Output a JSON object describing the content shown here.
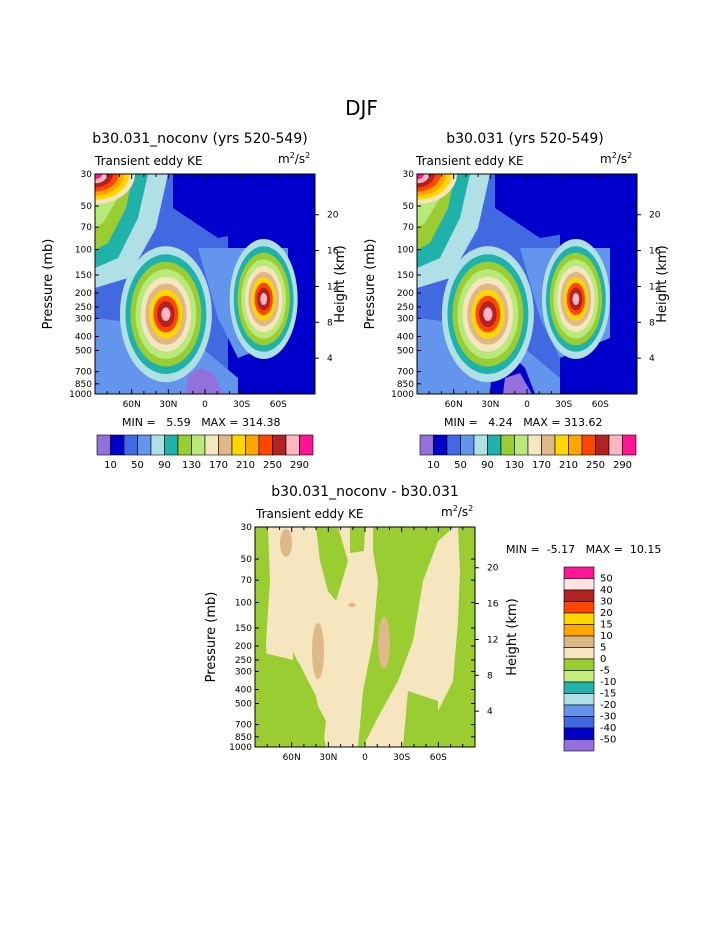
{
  "figure": {
    "title": "DJF"
  },
  "colors": {
    "kePalette": [
      "#9370db",
      "#0000cd",
      "#4169e1",
      "#6495ed",
      "#b0e0e6",
      "#20b2aa",
      "#9acd32",
      "#b9e87b",
      "#f5e6c0",
      "#deb887",
      "#ffd700",
      "#ffa500",
      "#ff4500",
      "#b22222",
      "#ffb6c1",
      "#ff1493"
    ],
    "diffPalette": [
      "#9370db",
      "#0000cd",
      "#4169e1",
      "#6495ed",
      "#b0e0e6",
      "#20b2aa",
      "#c6ee7c",
      "#9acd32",
      "#f5e6c0",
      "#deb887",
      "#ffa500",
      "#ffd700",
      "#ff4500",
      "#b22222",
      "#ffe4e1",
      "#ff1493"
    ]
  },
  "chart_data": [
    {
      "type": "heatmap",
      "title": "b30.031_noconv (yrs 520-549)",
      "subtitle": "Transient eddy KE",
      "units": {
        "base": "m",
        "exp1": "2",
        "mid": "/s",
        "exp2": "2"
      },
      "ylabel": "Pressure (mb)",
      "y2label": "Height (km)",
      "x_ticks": [
        "60N",
        "30N",
        "0",
        "30S",
        "60S"
      ],
      "y_ticks": [
        "30",
        "50",
        "70",
        "100",
        "150",
        "200",
        "250",
        "300",
        "400",
        "500",
        "700",
        "850",
        "1000"
      ],
      "y2_ticks": [
        "20",
        "16",
        "12",
        "8",
        "4"
      ],
      "min_label": "MIN =",
      "min_value": "5.59",
      "max_label": "MAX =",
      "max_value": "314.38",
      "levels_labels": [
        "10",
        "50",
        "90",
        "130",
        "170",
        "210",
        "250",
        "290"
      ],
      "field": {
        "x": [
          -90,
          90
        ],
        "y": [
          1000,
          30
        ],
        "features": [
          {
            "lat": 32,
            "p": 280,
            "peak": 300
          },
          {
            "lat": -48,
            "p": 220,
            "peak": 250
          },
          {
            "lat": 80,
            "p": 30,
            "peak": 314
          }
        ]
      }
    },
    {
      "type": "heatmap",
      "title": "b30.031 (yrs 520-549)",
      "subtitle": "Transient eddy KE",
      "units": {
        "base": "m",
        "exp1": "2",
        "mid": "/s",
        "exp2": "2"
      },
      "ylabel": "Pressure (mb)",
      "y2label": "Height (km)",
      "x_ticks": [
        "60N",
        "30N",
        "0",
        "30S",
        "60S"
      ],
      "y_ticks": [
        "30",
        "50",
        "70",
        "100",
        "150",
        "200",
        "250",
        "300",
        "400",
        "500",
        "700",
        "850",
        "1000"
      ],
      "y2_ticks": [
        "20",
        "16",
        "12",
        "8",
        "4"
      ],
      "min_label": "MIN =",
      "min_value": "4.24",
      "max_label": "MAX =",
      "max_value": "313.62",
      "levels_labels": [
        "10",
        "50",
        "90",
        "130",
        "170",
        "210",
        "250",
        "290"
      ],
      "field": {
        "x": [
          -90,
          90
        ],
        "y": [
          1000,
          30
        ],
        "features": [
          {
            "lat": 32,
            "p": 280,
            "peak": 300
          },
          {
            "lat": -40,
            "p": 220,
            "peak": 240
          },
          {
            "lat": 80,
            "p": 30,
            "peak": 313
          }
        ]
      }
    },
    {
      "type": "heatmap",
      "title": "b30.031_noconv - b30.031",
      "subtitle": "Transient eddy KE",
      "units": {
        "base": "m",
        "exp1": "2",
        "mid": "/s",
        "exp2": "2"
      },
      "ylabel": "Pressure (mb)",
      "y2label": "Height (km)",
      "x_ticks": [
        "60N",
        "30N",
        "0",
        "30S",
        "60S"
      ],
      "y_ticks": [
        "30",
        "50",
        "70",
        "100",
        "150",
        "200",
        "250",
        "300",
        "400",
        "500",
        "700",
        "850",
        "1000"
      ],
      "y2_ticks": [
        "20",
        "16",
        "12",
        "8",
        "4"
      ],
      "min_label": "MIN =",
      "min_value": "-5.17",
      "max_label": "MAX =",
      "max_value": "10.15",
      "levels_labels": [
        "50",
        "40",
        "30",
        "20",
        "15",
        "10",
        "5",
        "0",
        "-5",
        "-10",
        "-15",
        "-20",
        "-30",
        "-40",
        "-50"
      ],
      "field": {
        "x": [
          -90,
          90
        ],
        "y": [
          1000,
          30
        ]
      }
    }
  ]
}
